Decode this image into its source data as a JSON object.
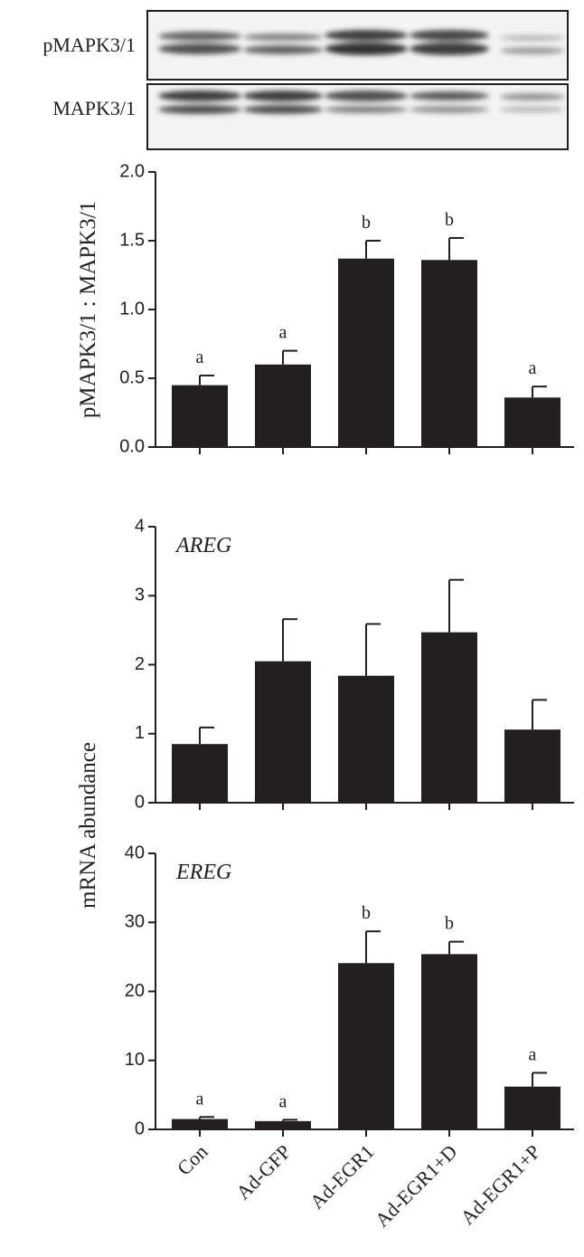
{
  "blots": [
    "pMAPK3/1",
    "MAPK3/1"
  ],
  "chart_data": [
    {
      "type": "bar",
      "ylabel": "pMAPK3/1 : MAPK3/1",
      "color": "#231f20",
      "values": [
        0.45,
        0.6,
        1.37,
        1.36,
        0.36
      ],
      "errors": [
        0.07,
        0.1,
        0.13,
        0.16,
        0.08
      ],
      "annotations": [
        "a",
        "a",
        "b",
        "b",
        "a"
      ],
      "ylim": [
        0,
        2
      ],
      "yticks": [
        {
          "value": 0,
          "label": "0.0"
        },
        0.5,
        {
          "value": 1,
          "label": "1.0"
        },
        1.5,
        {
          "value": 2,
          "label": "2.0"
        }
      ]
    },
    {
      "type": "bar",
      "label": "AREG",
      "ylabel": "mRNA abundance",
      "color": "#231f20",
      "values": [
        0.85,
        2.05,
        1.84,
        2.47,
        1.06
      ],
      "errors": [
        0.24,
        0.61,
        0.75,
        0.76,
        0.43
      ],
      "ylim": [
        0,
        4
      ],
      "yticks": [
        0,
        1,
        2,
        3,
        4
      ]
    },
    {
      "type": "bar",
      "label": "EREG",
      "color": "#231f20",
      "categories": [
        "Con",
        "Ad-GFP",
        "Ad-EGR1",
        "Ad-EGR1+D",
        "Ad-EGR1+P"
      ],
      "values": [
        1.5,
        1.2,
        24.1,
        25.4,
        6.2
      ],
      "errors": [
        0.3,
        0.2,
        4.6,
        1.8,
        2.0
      ],
      "annotations": [
        "a",
        "a",
        "b",
        "b",
        "a"
      ],
      "ylim": [
        0,
        40
      ],
      "yticks": [
        0,
        10,
        20,
        30,
        40
      ]
    }
  ]
}
